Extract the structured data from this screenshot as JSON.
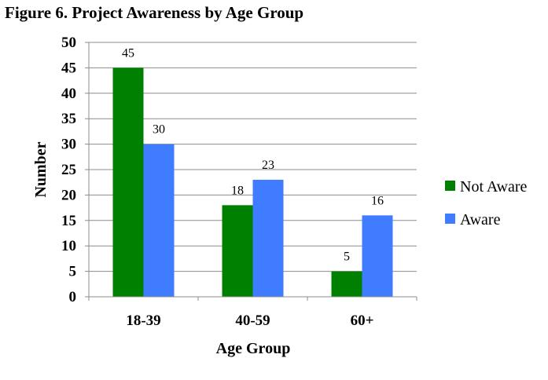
{
  "chart_data": {
    "type": "bar",
    "title": "Figure 6. Project Awareness by Age Group",
    "xlabel": "Age Group",
    "ylabel": "Number",
    "categories": [
      "18-39",
      "40-59",
      "60+"
    ],
    "series": [
      {
        "name": "Not Aware",
        "values": [
          45,
          18,
          5
        ],
        "color": "#008000"
      },
      {
        "name": "Aware",
        "values": [
          30,
          23,
          16
        ],
        "color": "#3f7cff"
      }
    ],
    "ylim": [
      0,
      50
    ],
    "yticks": [
      "0",
      "5",
      "10",
      "15",
      "20",
      "25",
      "30",
      "35",
      "40",
      "45",
      "50"
    ],
    "grid": true,
    "legend_position": "right"
  }
}
